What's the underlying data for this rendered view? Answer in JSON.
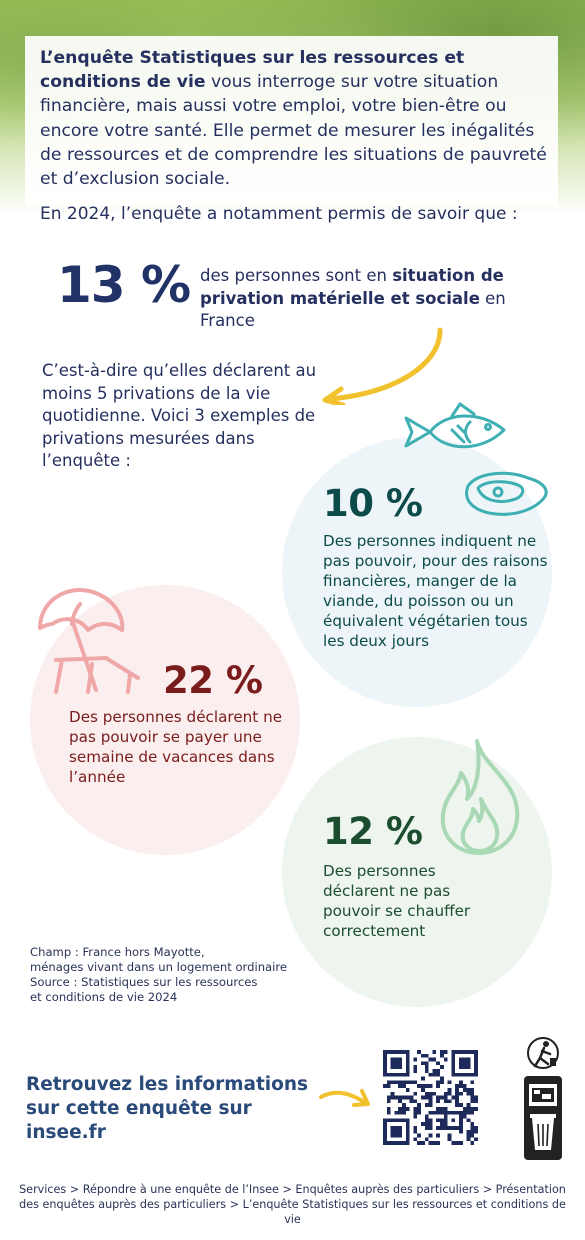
{
  "intro": {
    "bold": "L’enquête Statistiques sur les ressources et conditions de vie",
    "rest": " vous interroge sur votre situation financière, mais aussi votre emploi, votre bien-être ou encore votre santé. Elle permet de mesurer les inégalités de ressources et de comprendre les situations de pauvreté et d’exclusion sociale."
  },
  "lead": "En 2024, l’enquête a notamment permis de savoir que :",
  "stat13": {
    "value": "13 %",
    "text_before": "des personnes sont en ",
    "text_bold": "situation de privation matérielle et sociale",
    "text_after": " en France"
  },
  "explanation": "C’est-à-dire qu’elles déclarent au moins 5 privations de la vie quotidienne. Voici 3 exemples de privations mesurées dans l’enquête :",
  "stat10": {
    "value": "10 %",
    "text": "Des personnes indiquent ne pas pouvoir, pour des raisons financières, manger de la viande, du poisson ou un équivalent végétarien tous les deux jours",
    "icons": [
      "fish-icon",
      "meat-icon"
    ],
    "color": "#0d4b4a"
  },
  "stat22": {
    "value": "22 %",
    "text": "Des personnes déclarent ne pas pouvoir se payer une semaine de vacances dans l’année",
    "icons": [
      "beach-umbrella-icon"
    ],
    "color": "#7a1c1c"
  },
  "stat12": {
    "value": "12 %",
    "text": "Des personnes déclarent ne pas pouvoir se chauffer correctement",
    "icons": [
      "flame-icon"
    ],
    "color": "#1c4d2f"
  },
  "champ": {
    "line1": "Champ : France hors Mayotte,",
    "line2": "ménages vivant dans un logement ordinaire",
    "line3": "Source : Statistiques sur les ressources",
    "line4": "et conditions de vie 2024"
  },
  "cta": {
    "line1": "Retrouvez les informations",
    "line2": "sur cette enquête sur insee.fr"
  },
  "footer": "Services > Répondre à une enquête de l’Insee > Enquêtes auprès des particuliers > Présentation des enquêtes auprès des particuliers > L’enquête Statistiques sur les ressources et conditions de vie"
}
